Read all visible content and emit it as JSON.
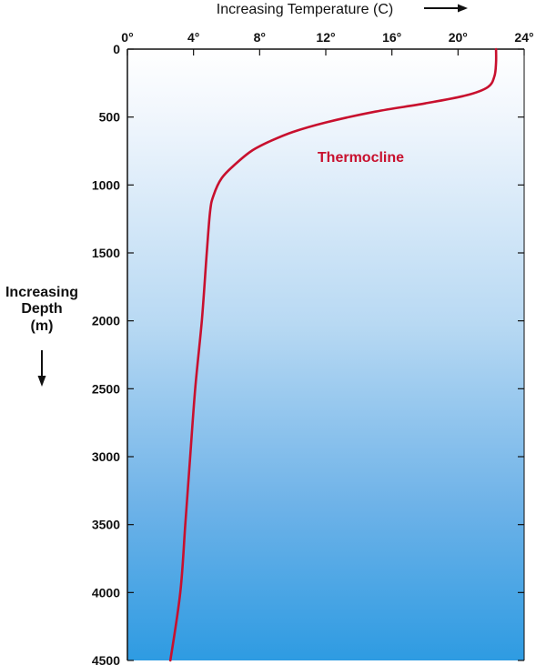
{
  "chart_data": {
    "type": "line",
    "title": "",
    "xlabel": "Increasing Temperature (C)",
    "ylabel_lines": [
      "Increasing",
      "Depth",
      "(m)"
    ],
    "x_ticks": [
      "0°",
      "4°",
      "8°",
      "12°",
      "16°",
      "20°",
      "24°"
    ],
    "x_tick_values": [
      0,
      4,
      8,
      12,
      16,
      20,
      24
    ],
    "y_ticks": [
      "0",
      "500",
      "1000",
      "1500",
      "2000",
      "2500",
      "3000",
      "3500",
      "4000",
      "4500"
    ],
    "y_tick_values": [
      0,
      500,
      1000,
      1500,
      2000,
      2500,
      3000,
      3500,
      4000,
      4500
    ],
    "xlim": [
      0,
      24
    ],
    "ylim": [
      0,
      4500
    ],
    "y_inverted": true,
    "x_axis_position": "top",
    "grid": false,
    "background": "blue gradient, lighter near surface, darker with depth",
    "series": [
      {
        "name": "",
        "color": "#c8102e",
        "points": [
          [
            22.3,
            0
          ],
          [
            22.3,
            100
          ],
          [
            22.2,
            200
          ],
          [
            21.8,
            280
          ],
          [
            20.5,
            340
          ],
          [
            18.0,
            400
          ],
          [
            15.0,
            460
          ],
          [
            12.0,
            540
          ],
          [
            10.0,
            610
          ],
          [
            8.6,
            680
          ],
          [
            7.5,
            750
          ],
          [
            6.5,
            850
          ],
          [
            5.7,
            950
          ],
          [
            5.2,
            1080
          ],
          [
            5.0,
            1200
          ],
          [
            4.8,
            1500
          ],
          [
            4.5,
            2000
          ],
          [
            4.1,
            2500
          ],
          [
            3.8,
            3000
          ],
          [
            3.5,
            3500
          ],
          [
            3.2,
            4000
          ],
          [
            2.6,
            4500
          ]
        ]
      }
    ],
    "annotations": [
      {
        "text": "Thermocline",
        "x": 11.5,
        "y": 850,
        "color": "#c8102e"
      }
    ],
    "colors": {
      "background_top": "#ffffff",
      "background_bottom": "#2e9be2",
      "axis": "#111111",
      "line": "#c8102e"
    }
  }
}
